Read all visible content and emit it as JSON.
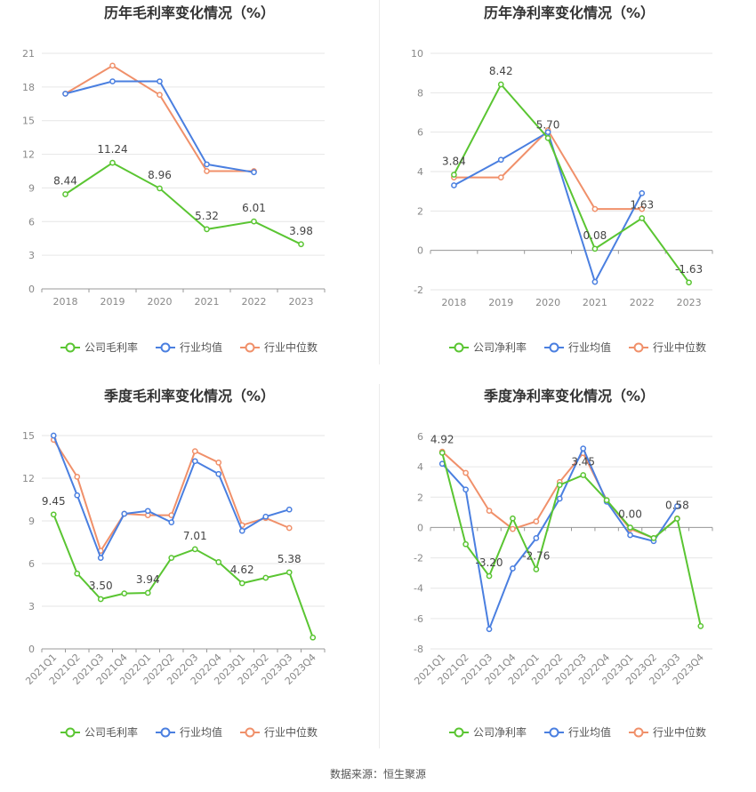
{
  "footer": {
    "source": "数据来源：恒生聚源"
  },
  "colors": {
    "company": "#5ac532",
    "industry_avg": "#4a7fe0",
    "industry_median": "#f0906a",
    "grid": "#e6e6e6",
    "axis": "#999999"
  },
  "chart_data": [
    {
      "type": "line",
      "title": "历年毛利率变化情况（%）",
      "categories": [
        "2018",
        "2019",
        "2020",
        "2021",
        "2022",
        "2023"
      ],
      "ylim": [
        0,
        21
      ],
      "yticks": [
        0,
        3,
        6,
        9,
        12,
        15,
        18,
        21
      ],
      "grid": true,
      "legend_position": "bottom",
      "series": [
        {
          "name": "公司毛利率",
          "values": [
            8.44,
            11.24,
            8.96,
            5.32,
            6.01,
            3.98
          ],
          "labels": [
            "8.44",
            "11.24",
            "8.96",
            "5.32",
            "6.01",
            "3.98"
          ]
        },
        {
          "name": "行业均值",
          "values": [
            17.4,
            18.5,
            18.5,
            11.1,
            10.4,
            null
          ]
        },
        {
          "name": "行业中位数",
          "values": [
            17.4,
            19.9,
            17.3,
            10.5,
            10.5,
            null
          ]
        }
      ]
    },
    {
      "type": "line",
      "title": "历年净利率变化情况（%）",
      "categories": [
        "2018",
        "2019",
        "2020",
        "2021",
        "2022",
        "2023"
      ],
      "ylim": [
        -2,
        10
      ],
      "yticks": [
        -2,
        0,
        2,
        4,
        6,
        8,
        10
      ],
      "grid": true,
      "legend_position": "bottom",
      "series": [
        {
          "name": "公司净利率",
          "values": [
            3.84,
            8.42,
            5.7,
            0.08,
            1.63,
            -1.63
          ],
          "labels": [
            "3.84",
            "8.42",
            "5.70",
            "0.08",
            "1.63",
            "-1.63"
          ]
        },
        {
          "name": "行业均值",
          "values": [
            3.3,
            4.6,
            6.0,
            -1.6,
            2.9,
            null
          ]
        },
        {
          "name": "行业中位数",
          "values": [
            3.7,
            3.7,
            6.1,
            2.1,
            2.1,
            null
          ]
        }
      ]
    },
    {
      "type": "line",
      "title": "季度毛利率变化情况（%）",
      "categories": [
        "2021Q1",
        "2021Q2",
        "2021Q3",
        "2021Q4",
        "2022Q1",
        "2022Q2",
        "2022Q3",
        "2022Q4",
        "2023Q1",
        "2023Q2",
        "2023Q3",
        "2023Q4"
      ],
      "ylim": [
        0,
        15
      ],
      "yticks": [
        0,
        3,
        6,
        9,
        12,
        15
      ],
      "grid": true,
      "legend_position": "bottom",
      "series": [
        {
          "name": "公司毛利率",
          "values": [
            9.45,
            5.3,
            3.5,
            3.9,
            3.94,
            6.4,
            7.01,
            6.1,
            4.62,
            5.0,
            5.38,
            0.8
          ],
          "labels": [
            "9.45",
            "",
            "3.50",
            "",
            "3.94",
            "",
            "7.01",
            "",
            "4.62",
            "",
            "5.38",
            ""
          ]
        },
        {
          "name": "行业均值",
          "values": [
            15.0,
            10.8,
            6.4,
            9.5,
            9.7,
            8.9,
            13.2,
            12.3,
            8.3,
            9.3,
            9.8,
            null
          ]
        },
        {
          "name": "行业中位数",
          "values": [
            14.7,
            12.1,
            6.9,
            9.5,
            9.4,
            9.4,
            13.9,
            13.1,
            8.7,
            9.2,
            8.5,
            null
          ]
        }
      ]
    },
    {
      "type": "line",
      "title": "季度净利率变化情况（%）",
      "categories": [
        "2021Q1",
        "2021Q2",
        "2021Q3",
        "2021Q4",
        "2022Q1",
        "2022Q2",
        "2022Q3",
        "2022Q4",
        "2023Q1",
        "2023Q2",
        "2023Q3",
        "2023Q4"
      ],
      "ylim": [
        -8,
        6
      ],
      "yticks": [
        -8,
        -6,
        -4,
        -2,
        0,
        2,
        4,
        6
      ],
      "grid": true,
      "legend_position": "bottom",
      "series": [
        {
          "name": "公司净利率",
          "values": [
            4.92,
            -1.1,
            -3.2,
            0.6,
            -2.76,
            2.8,
            3.45,
            1.8,
            0.0,
            -0.7,
            0.58,
            -6.5
          ],
          "labels": [
            "4.92",
            "",
            "-3.20",
            "",
            "-2.76",
            "",
            "3.45",
            "",
            "0.00",
            "",
            "0.58",
            ""
          ]
        },
        {
          "name": "行业均值",
          "values": [
            4.2,
            2.5,
            -6.7,
            -2.7,
            -0.7,
            1.9,
            5.2,
            1.7,
            -0.5,
            -0.9,
            1.4,
            null
          ]
        },
        {
          "name": "行业中位数",
          "values": [
            5.0,
            3.6,
            1.1,
            -0.1,
            0.4,
            3.0,
            4.9,
            1.8,
            -0.1,
            -0.7,
            0.6,
            null
          ]
        }
      ]
    }
  ]
}
